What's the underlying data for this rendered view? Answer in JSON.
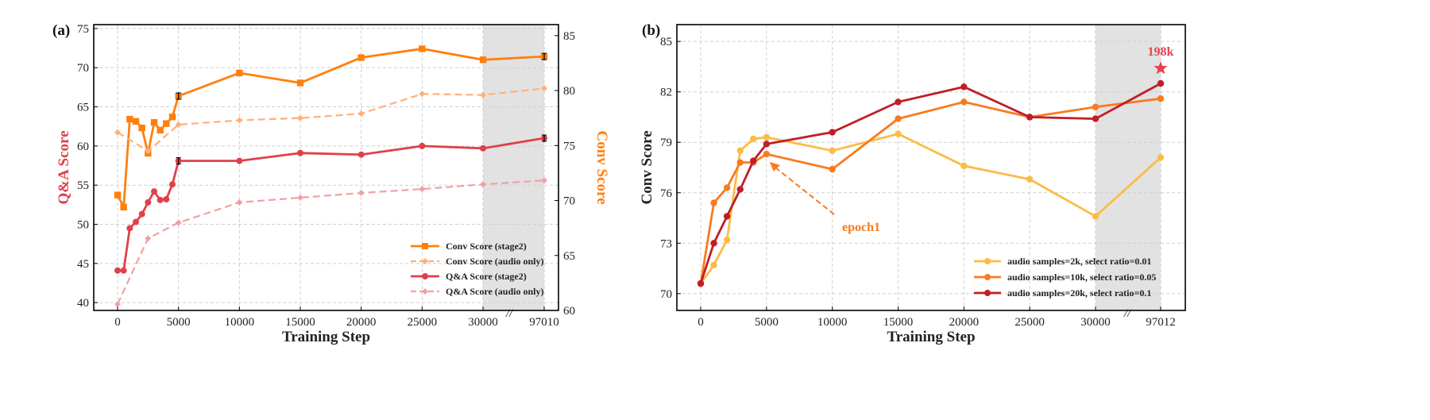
{
  "chart_data": [
    {
      "type": "line",
      "panel_label": "(a)",
      "xlabel": "Training Step",
      "ylabel_left": "Q&A Score",
      "ylabel_right": "Conv Score",
      "x_ticks": [
        "0",
        "5000",
        "10000",
        "15000",
        "20000",
        "25000",
        "30000",
        "97010"
      ],
      "ylim_left": [
        39,
        75.5
      ],
      "yticks_left": [
        "40",
        "45",
        "50",
        "55",
        "60",
        "65",
        "70",
        "75"
      ],
      "ylim_right": [
        60,
        86
      ],
      "yticks_right": [
        "60",
        "65",
        "70",
        "75",
        "80",
        "85"
      ],
      "grid": true,
      "shaded_region": [
        30000,
        35000
      ],
      "axis_break": "//",
      "legend_position": "lower-right",
      "colors": {
        "conv_stage2": "#ff7f0e",
        "conv_audio": "#ffb07a",
        "qa_stage2": "#e0404a",
        "qa_audio": "#f2a0a4"
      },
      "series": [
        {
          "name": "Conv Score (stage2)",
          "axis": "right",
          "marker": "square",
          "style": "solid",
          "x": [
            0,
            500,
            1000,
            1500,
            2000,
            2500,
            3000,
            3500,
            4000,
            4500,
            5000,
            10000,
            15000,
            20000,
            25000,
            30000,
            97010
          ],
          "y": [
            70.5,
            69.4,
            77.4,
            77.2,
            76.6,
            74.3,
            77.1,
            76.4,
            77.0,
            77.6,
            79.5,
            81.6,
            80.7,
            83.0,
            83.8,
            82.8,
            83.1
          ]
        },
        {
          "name": "Conv Score (audio only)",
          "axis": "right",
          "marker": "diamond",
          "style": "dashed",
          "x": [
            0,
            2500,
            5000,
            10000,
            15000,
            20000,
            25000,
            30000,
            97010
          ],
          "y": [
            76.2,
            74.5,
            76.9,
            77.3,
            77.5,
            77.9,
            79.7,
            79.6,
            80.2
          ]
        },
        {
          "name": "Q&A Score (stage2)",
          "axis": "left",
          "marker": "circle",
          "style": "solid",
          "x": [
            0,
            500,
            1000,
            1500,
            2000,
            2500,
            3000,
            3500,
            4000,
            4500,
            5000,
            10000,
            15000,
            20000,
            25000,
            30000,
            97010
          ],
          "y": [
            44.1,
            44.1,
            49.5,
            50.3,
            51.3,
            52.8,
            54.2,
            53.1,
            53.2,
            55.1,
            58.1,
            58.1,
            59.1,
            58.9,
            60.0,
            59.7,
            61.0
          ]
        },
        {
          "name": "Q&A Score (audio only)",
          "axis": "left",
          "marker": "diamond",
          "style": "dashed",
          "x": [
            0,
            2500,
            5000,
            10000,
            15000,
            20000,
            25000,
            30000,
            97010
          ],
          "y": [
            39.8,
            48.2,
            50.2,
            52.8,
            53.4,
            54.0,
            54.5,
            55.1,
            55.6
          ]
        }
      ]
    },
    {
      "type": "line",
      "panel_label": "(b)",
      "xlabel": "Training Step",
      "ylabel": "Conv Score",
      "x_ticks": [
        "0",
        "5000",
        "10000",
        "15000",
        "20000",
        "25000",
        "30000",
        "97012"
      ],
      "ylim": [
        69,
        86
      ],
      "yticks": [
        "70",
        "73",
        "76",
        "79",
        "82",
        "85"
      ],
      "grid": true,
      "shaded_region": [
        30000,
        35000
      ],
      "axis_break": "//",
      "legend_position": "lower-right",
      "colors": {
        "s2k": "#fbbc45",
        "s10k": "#f97a1f",
        "s20k": "#c01e26",
        "star": "#e8424f"
      },
      "annotations": [
        {
          "text": "epoch1",
          "color": "#f97a1f"
        },
        {
          "text": "198k",
          "color": "#e8424f"
        }
      ],
      "series": [
        {
          "name": "audio samples=2k, select ratio=0.01",
          "x": [
            0,
            1000,
            2000,
            3000,
            4000,
            5000,
            10000,
            15000,
            20000,
            25000,
            30000,
            97012
          ],
          "y": [
            70.6,
            71.7,
            73.2,
            78.5,
            79.2,
            79.3,
            78.5,
            79.5,
            77.6,
            76.8,
            74.6,
            78.1
          ]
        },
        {
          "name": "audio samples=10k, select ratio=0.05",
          "x": [
            0,
            1000,
            2000,
            3000,
            4000,
            5000,
            10000,
            15000,
            20000,
            25000,
            30000,
            97012
          ],
          "y": [
            70.6,
            75.4,
            76.3,
            77.8,
            77.8,
            78.3,
            77.4,
            80.4,
            81.4,
            80.5,
            81.1,
            81.6
          ]
        },
        {
          "name": "audio samples=20k, select ratio=0.1",
          "x": [
            0,
            1000,
            2000,
            3000,
            4000,
            5000,
            10000,
            15000,
            20000,
            25000,
            30000,
            97012
          ],
          "y": [
            70.6,
            73.0,
            74.6,
            76.2,
            77.9,
            78.9,
            79.6,
            81.4,
            82.3,
            80.5,
            80.4,
            82.5
          ]
        }
      ]
    }
  ]
}
